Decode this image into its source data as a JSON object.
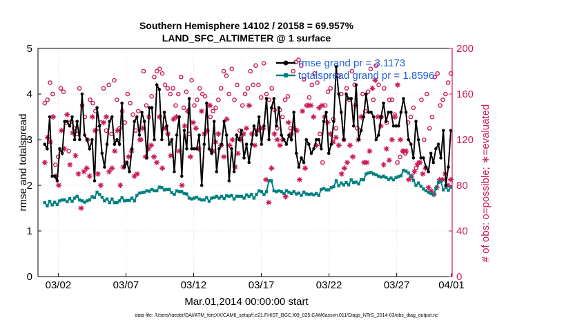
{
  "chart_data": {
    "type": "line",
    "title": "Southern Hemisphere 14102 / 20158 = 69.957%",
    "subtitle": "LAND_SFC_ALTIMETER @ 1 surface",
    "xlabel": "Mar.01,2014 00:00:00 start",
    "ylabel": "rmse and totalspread",
    "y2label": "# of obs: o=possible; ∗=evaluated",
    "footnote": "data file: /Users/raeder/DAI/ATM_forcXX/CAM6_setup/f.e21.FHIST_BGC.f09_025.CAM6assim.011/Diags_NTrS_2014-03/obs_diag_output.nc",
    "xlim": [
      0.5,
      31.1
    ],
    "ylim": [
      0,
      5
    ],
    "y2lim": [
      0,
      200
    ],
    "x_ticks": [
      2,
      7,
      12,
      17,
      22,
      27,
      31.5
    ],
    "x_tick_labels": [
      "03/02",
      "03/07",
      "03/12",
      "03/17",
      "03/22",
      "03/27",
      "04/01"
    ],
    "y_ticks": [
      "0",
      "1",
      "2",
      "3",
      "4",
      "5"
    ],
    "y2_ticks": [
      "0",
      "40",
      "80",
      "120",
      "160",
      "200"
    ],
    "grid": true,
    "legend_position": "top-right",
    "colors": {
      "rmse": "#000000",
      "spread": "#008080",
      "obs": "#cc1a5a"
    },
    "series": [
      {
        "name": "rmse grand pr = 3.1173",
        "type": "line",
        "axis": "left",
        "values": [
          2.9,
          2.8,
          3.5,
          2.2,
          2.2,
          2.1,
          2.8,
          2.7,
          3.4,
          3.4,
          3.3,
          3.5,
          3.0,
          3.4,
          3.0,
          4.0,
          3.1,
          3.0,
          2.8,
          3.0,
          2.1,
          3.7,
          3.3,
          2.7,
          2.4,
          2.9,
          3.4,
          3.5,
          2.9,
          3.0,
          2.9,
          3.8,
          2.4,
          2.5,
          2.3,
          2.8,
          3.4,
          3.5,
          3.1,
          3.6,
          3.4,
          2.6,
          3.7,
          3.7,
          3.0,
          4.2,
          4.1,
          3.0,
          3.6,
          3.3,
          2.9,
          3.0,
          2.3,
          3.1,
          3.5,
          2.2,
          3.2,
          2.8,
          3.9,
          2.8,
          2.8,
          2.8,
          3.1,
          2.0,
          2.9,
          3.8,
          2.8,
          2.7,
          3.4,
          2.3,
          2.8,
          2.9,
          3.4,
          3.1,
          2.1,
          2.8,
          2.3,
          3.1,
          3.0,
          3.2,
          2.6,
          2.9,
          2.5,
          2.9,
          3.3,
          3.1,
          3.5,
          2.9,
          3.3,
          3.9,
          3.0,
          3.7,
          3.9,
          3.3,
          3.7,
          3.1,
          3.0,
          2.9,
          3.1,
          3.0,
          3.6,
          2.7,
          2.4,
          2.6,
          2.5,
          3.0,
          2.9,
          2.7,
          2.8,
          3.0,
          3.0,
          2.8,
          3.4,
          3.6,
          2.7,
          2.9,
          3.4,
          4.6,
          4.0,
          3.6,
          3.0,
          4.0,
          3.9,
          3.9,
          3.3,
          4.2,
          3.0,
          3.2,
          3.5,
          4.0,
          3.6,
          3.6,
          3.5,
          3.0,
          3.1,
          3.5,
          3.8,
          3.4,
          3.6,
          3.6,
          3.3,
          3.3,
          3.3,
          3.6,
          3.9,
          3.6,
          3.0,
          2.9,
          2.6,
          3.4,
          3.0,
          2.6,
          2.6,
          2.4,
          2.3,
          2.7,
          2.5,
          2.8,
          2.9,
          2.6,
          3.2,
          2.0,
          2.4,
          3.2
        ]
      },
      {
        "name": "totalspread grand pr = 1.8596",
        "type": "line",
        "axis": "left",
        "values": [
          1.62,
          1.55,
          1.65,
          1.57,
          1.63,
          1.58,
          1.66,
          1.68,
          1.68,
          1.64,
          1.71,
          1.65,
          1.72,
          1.76,
          1.68,
          1.66,
          1.63,
          1.66,
          1.68,
          1.75,
          1.73,
          1.85,
          1.8,
          1.74,
          1.66,
          1.7,
          1.62,
          1.7,
          1.62,
          1.62,
          1.66,
          1.73,
          1.66,
          1.67,
          1.67,
          1.72,
          1.66,
          1.78,
          1.83,
          1.84,
          1.85,
          1.88,
          1.87,
          1.91,
          1.88,
          1.88,
          1.96,
          1.95,
          1.9,
          1.91,
          1.91,
          1.84,
          1.8,
          1.88,
          1.86,
          1.86,
          1.82,
          1.81,
          1.72,
          1.7,
          1.72,
          1.74,
          1.7,
          1.68,
          1.68,
          1.73,
          1.65,
          1.72,
          1.73,
          1.76,
          1.72,
          1.76,
          1.71,
          1.77,
          1.76,
          1.78,
          1.7,
          1.76,
          1.76,
          1.76,
          1.72,
          1.79,
          1.76,
          1.8,
          1.72,
          1.8,
          1.88,
          1.86,
          1.8,
          1.86,
          2.1,
          2.1,
          1.88,
          1.86,
          1.88,
          1.86,
          1.82,
          1.88,
          1.85,
          1.82,
          1.86,
          1.81,
          1.83,
          1.78,
          1.85,
          1.81,
          1.8,
          1.81,
          1.79,
          1.82,
          1.78,
          1.91,
          1.93,
          1.9,
          1.9,
          1.95,
          1.97,
          2.1,
          1.99,
          2.05,
          2.01,
          2.06,
          2.01,
          2.12,
          2.06,
          2.07,
          2.03,
          2.13,
          2.12,
          2.25,
          2.27,
          2.28,
          2.25,
          2.23,
          2.2,
          2.18,
          2.2,
          2.17,
          2.13,
          2.16,
          2.12,
          2.17,
          2.19,
          2.21,
          2.33,
          2.31,
          2.27,
          2.2,
          2.11,
          2.0,
          2.05,
          1.98,
          1.92,
          1.88,
          1.85,
          1.82,
          1.79,
          1.93,
          2.06,
          2.08,
          1.9,
          1.96,
          1.89,
          1.96
        ]
      },
      {
        "name": "possible",
        "type": "scatter",
        "axis": "right",
        "values": [
          152,
          155,
          170,
          160,
          98,
          105,
          165,
          162,
          135,
          110,
          136,
          130,
          125,
          165,
          150,
          140,
          120,
          155,
          152,
          145,
          130,
          135,
          165,
          128,
          168,
          125,
          172,
          155,
          130,
          145,
          135,
          160,
          152,
          142,
          128,
          145,
          120,
          180,
          150,
          140,
          158,
          175,
          180,
          182,
          178,
          168,
          165,
          160,
          165,
          150,
          160,
          175,
          148,
          162,
          125,
          172,
          150,
          155,
          165,
          160,
          158,
          150,
          140,
          145,
          148,
          155,
          165,
          180,
          176,
          160,
          182,
          155,
          168,
          128,
          150,
          160,
          165,
          180,
          168,
          185,
          168,
          157,
          187,
          160,
          155,
          165,
          146,
          130,
          146,
          140,
          155,
          158,
          130,
          180,
          188,
          190,
          185,
          173,
          150,
          157,
          168,
          178,
          170,
          125,
          100,
          150,
          162,
          165,
          138,
          130,
          176,
          160,
          120,
          165,
          155,
          180,
          168,
          130,
          128,
          160,
          145,
          162,
          182,
          155,
          185,
          168,
          140,
          165,
          135,
          155,
          155,
          142,
          100,
          105,
          110,
          108,
          135,
          140,
          148,
          95,
          100,
          155,
          120,
          160,
          130,
          140,
          175,
          178,
          150,
          155,
          160,
          170,
          178
        ]
      },
      {
        "name": "evaluated",
        "type": "scatter",
        "axis": "right",
        "values": [
          100,
          122,
          118,
          140,
          88,
          80,
          128,
          112,
          142,
          98,
          126,
          106,
          90,
          60,
          92,
          95,
          88,
          140,
          128,
          90,
          80,
          135,
          140,
          92,
          95,
          110,
          128,
          80,
          96,
          100,
          105,
          110,
          88,
          90,
          120,
          130,
          105,
          112,
          115,
          105,
          100,
          140,
          95,
          130,
          125,
          106,
          138,
          140,
          110,
          80,
          132,
          145,
          105,
          135,
          130,
          112,
          145,
          125,
          128,
          150,
          110,
          118,
          125,
          115,
          105,
          138,
          115,
          120,
          96,
          108,
          120,
          125,
          130,
          150,
          125,
          115,
          128,
          130,
          130,
          85,
          65,
          95,
          125,
          120,
          115,
          120,
          70,
          135,
          125,
          130,
          128,
          85,
          145,
          95,
          150,
          150,
          140,
          115,
          148,
          150,
          140,
          135,
          125,
          118,
          122,
          115,
          90,
          95,
          100,
          115,
          105,
          150,
          120,
          140,
          100,
          100,
          110,
          165,
          172,
          140,
          132,
          98,
          112,
          102,
          120,
          140,
          168,
          120,
          110,
          110,
          85,
          88,
          92,
          98,
          100,
          90,
          95,
          78,
          75,
          72,
          78,
          85,
          85,
          90,
          80,
          85
        ]
      }
    ]
  }
}
